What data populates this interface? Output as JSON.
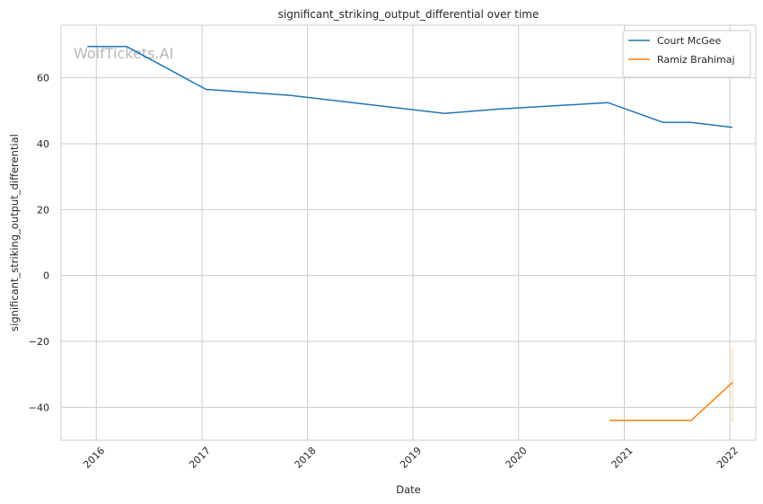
{
  "chart_data": {
    "type": "line",
    "title": "significant_striking_output_differential over time",
    "xlabel": "Date",
    "ylabel": "significant_striking_output_differential",
    "watermark": "WolfTickets.AI",
    "x_axis": {
      "type": "date",
      "min": "2015-09-01",
      "max": "2022-04-01",
      "ticks": [
        "2016",
        "2017",
        "2018",
        "2019",
        "2020",
        "2021",
        "2022"
      ]
    },
    "y_axis": {
      "min": -50,
      "max": 76,
      "ticks": [
        -40,
        -20,
        0,
        20,
        40,
        60
      ]
    },
    "grid": true,
    "legend": "top-right",
    "series": [
      {
        "name": "Court McGee",
        "color": "#1f77b4",
        "points": [
          {
            "date": "2015-12-01",
            "y": 69.5
          },
          {
            "date": "2016-04-15",
            "y": 69.5
          },
          {
            "date": "2017-01-15",
            "y": 56.5
          },
          {
            "date": "2017-11-01",
            "y": 54.7
          },
          {
            "date": "2019-04-20",
            "y": 49.2
          },
          {
            "date": "2019-10-20",
            "y": 50.5
          },
          {
            "date": "2020-11-05",
            "y": 52.5
          },
          {
            "date": "2021-05-15",
            "y": 46.5
          },
          {
            "date": "2021-08-20",
            "y": 46.5
          },
          {
            "date": "2022-01-10",
            "y": 45.0
          }
        ]
      },
      {
        "name": "Ramiz Brahimaj",
        "color": "#ff7f0e",
        "points": [
          {
            "date": "2020-11-10",
            "y": -44.0
          },
          {
            "date": "2021-08-20",
            "y": -44.0
          },
          {
            "date": "2022-01-10",
            "y": -32.5
          }
        ],
        "band": {
          "date": "2022-01-10",
          "low": -44.5,
          "high": -22.0
        }
      }
    ]
  }
}
